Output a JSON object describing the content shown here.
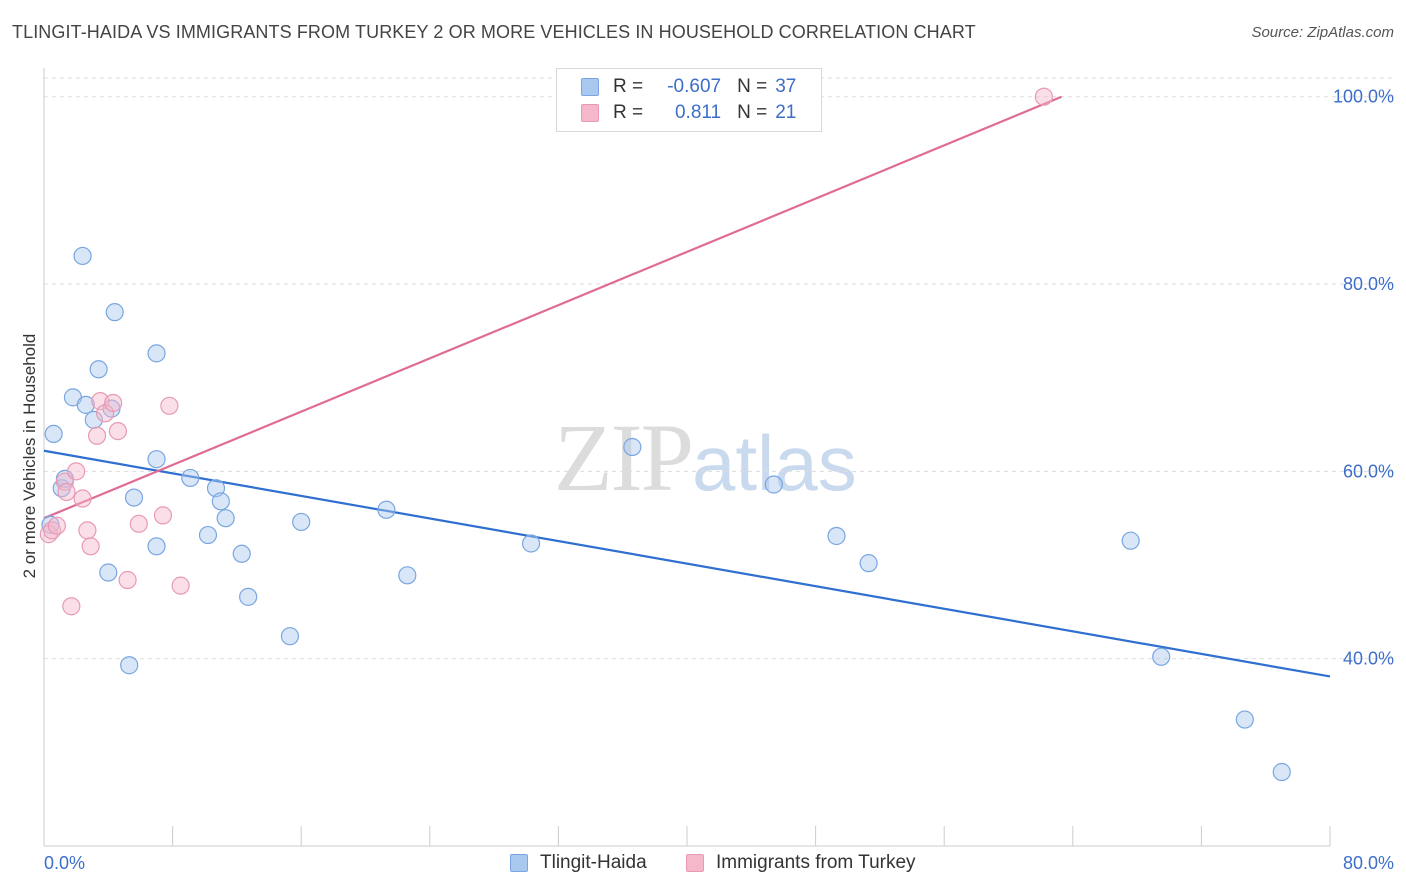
{
  "header": {
    "title": "TLINGIT-HAIDA VS IMMIGRANTS FROM TURKEY 2 OR MORE VEHICLES IN HOUSEHOLD CORRELATION CHART",
    "source": "Source: ZipAtlas.com"
  },
  "watermark": {
    "zip": "ZIP",
    "atlas": "atlas"
  },
  "legend": {
    "rows": [
      {
        "r_label": "R =",
        "r_value": "-0.607",
        "n_label": "N =",
        "n_value": "37",
        "color": "#a9c8f0"
      },
      {
        "r_label": "R =",
        "r_value": "0.811",
        "n_label": "N =",
        "n_value": "21",
        "color": "#f5b8cb"
      }
    ]
  },
  "bottom_legend": {
    "items": [
      {
        "label": "Tlingit-Haida",
        "color": "#a9c8f0"
      },
      {
        "label": "Immigrants from Turkey",
        "color": "#f5b8cb"
      }
    ]
  },
  "colors": {
    "blue_line": "#2f6fcf",
    "pink_line": "#e06b95",
    "blue_point": "#a9c8f0",
    "pink_point": "#f5b8cb",
    "tick_text": "#3d6ec9"
  },
  "chart_data": {
    "type": "scatter",
    "title": "TLINGIT-HAIDA VS IMMIGRANTS FROM TURKEY 2 OR MORE VEHICLES IN HOUSEHOLD CORRELATION CHART",
    "xlabel": "",
    "ylabel": "2 or more Vehicles in Household",
    "xlim": [
      0,
      80
    ],
    "ylim": [
      20,
      102
    ],
    "x_tick_labels": [
      "0.0%",
      "80.0%"
    ],
    "y_ticks": [
      40,
      60,
      80,
      100
    ],
    "y_tick_labels": [
      "40.0%",
      "60.0%",
      "80.0%",
      "100.0%"
    ],
    "grid": true,
    "legend_position": "top-center",
    "series": [
      {
        "name": "Tlingit-Haida",
        "points": [
          [
            0.6,
            64.0
          ],
          [
            1.1,
            58.2
          ],
          [
            1.3,
            59.2
          ],
          [
            2.4,
            83.0
          ],
          [
            1.8,
            67.9
          ],
          [
            2.6,
            67.1
          ],
          [
            3.1,
            65.5
          ],
          [
            3.4,
            70.9
          ],
          [
            4.4,
            77.0
          ],
          [
            4.2,
            66.7
          ],
          [
            4.0,
            49.2
          ],
          [
            5.6,
            57.2
          ],
          [
            5.3,
            39.3
          ],
          [
            7.0,
            72.6
          ],
          [
            7.0,
            61.3
          ],
          [
            7.0,
            52.0
          ],
          [
            9.1,
            59.3
          ],
          [
            10.2,
            53.2
          ],
          [
            10.7,
            58.2
          ],
          [
            11.0,
            56.8
          ],
          [
            11.3,
            55.0
          ],
          [
            12.3,
            51.2
          ],
          [
            12.7,
            46.6
          ],
          [
            15.3,
            42.4
          ],
          [
            16.0,
            54.6
          ],
          [
            21.3,
            55.9
          ],
          [
            22.6,
            48.9
          ],
          [
            30.3,
            52.3
          ],
          [
            36.6,
            62.6
          ],
          [
            45.4,
            58.6
          ],
          [
            49.3,
            53.1
          ],
          [
            51.3,
            50.2
          ],
          [
            67.6,
            52.6
          ],
          [
            69.5,
            40.2
          ],
          [
            74.7,
            33.5
          ],
          [
            77.0,
            27.9
          ],
          [
            0.4,
            54.3
          ]
        ],
        "trend": {
          "x": [
            0,
            80
          ],
          "y": [
            62.2,
            38.1
          ]
        }
      },
      {
        "name": "Immigrants from Turkey",
        "points": [
          [
            0.3,
            53.3
          ],
          [
            0.5,
            53.7
          ],
          [
            0.8,
            54.2
          ],
          [
            1.3,
            58.9
          ],
          [
            1.4,
            57.8
          ],
          [
            1.7,
            45.6
          ],
          [
            2.0,
            60.0
          ],
          [
            2.4,
            57.1
          ],
          [
            2.7,
            53.7
          ],
          [
            2.9,
            52.0
          ],
          [
            3.3,
            63.8
          ],
          [
            3.5,
            67.5
          ],
          [
            3.8,
            66.2
          ],
          [
            4.3,
            67.3
          ],
          [
            4.6,
            64.3
          ],
          [
            5.2,
            48.4
          ],
          [
            5.9,
            54.4
          ],
          [
            7.4,
            55.3
          ],
          [
            7.8,
            67.0
          ],
          [
            8.5,
            47.8
          ],
          [
            62.2,
            100.0
          ]
        ],
        "trend": {
          "x": [
            0,
            63.3
          ],
          "y": [
            55.0,
            100.0
          ]
        }
      }
    ]
  }
}
